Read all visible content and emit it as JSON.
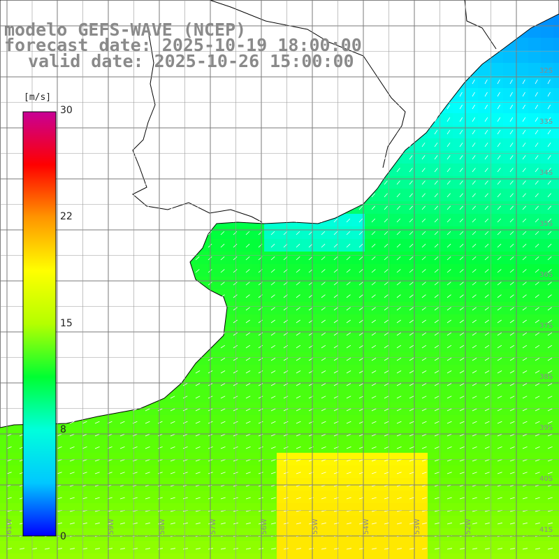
{
  "titles": {
    "model": "modelo GEFS-WAVE (NCEP)",
    "forecast": "forecast date: 2025-10-19 18:00:00",
    "valid": "valid date: 2025-10-26 15:00:00"
  },
  "colorbar": {
    "unit": "[m/s]",
    "ticks": [
      "30",
      "22",
      "15",
      "8",
      "0"
    ],
    "tick_values": [
      30,
      22,
      15,
      8,
      0
    ],
    "colors": [
      "#0000ff",
      "#00c8ff",
      "#00ffdc",
      "#00ff32",
      "#b4ff00",
      "#ffff00",
      "#ff9600",
      "#ff0000",
      "#c80096"
    ]
  },
  "axes": {
    "lon_labels": [
      "61W",
      "59W",
      "58W",
      "57W",
      "56W",
      "55W",
      "54W",
      "53W",
      "52W"
    ],
    "lat_labels": [
      "32S",
      "33S",
      "34S",
      "35S",
      "36S",
      "37S",
      "38S",
      "39S",
      "40S",
      "41S"
    ]
  },
  "colors": {
    "land": "#ffffff",
    "coast": "#000000",
    "grid": "#7a7a7a",
    "text": "#8a8a8a",
    "arrows": "#ffffff"
  }
}
